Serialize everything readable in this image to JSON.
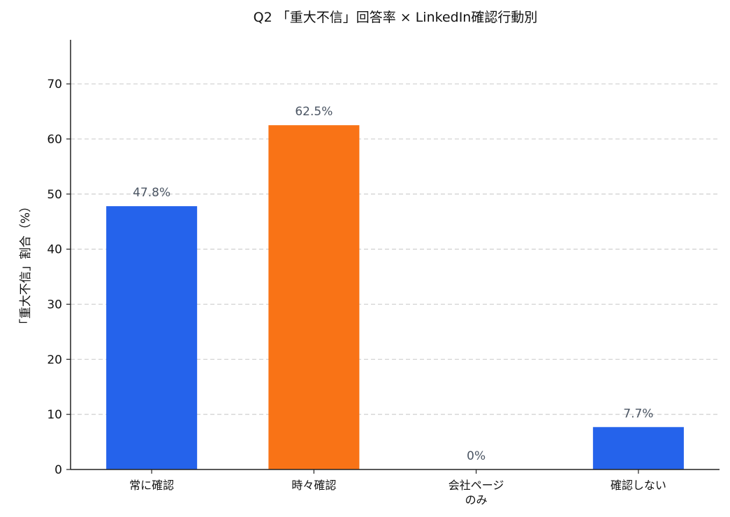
{
  "chart_data": {
    "type": "bar",
    "title": "Q2 「重大不信」回答率 × LinkedIn確認行動別",
    "ylabel": "「重大不信」割合（%）",
    "xlabel": "",
    "ylim": [
      0,
      78
    ],
    "yticks": [
      0,
      10,
      20,
      30,
      40,
      50,
      60,
      70
    ],
    "grid": true,
    "categories": [
      [
        "常に確認"
      ],
      [
        "時々確認"
      ],
      [
        "会社ページ",
        "のみ"
      ],
      [
        "確認しない"
      ]
    ],
    "values": [
      47.8,
      62.5,
      0,
      7.7
    ],
    "data_labels": [
      "47.8%",
      "62.5%",
      "0%",
      "7.7%"
    ],
    "colors": [
      "#2563eb",
      "#f97316",
      "#2563eb",
      "#2563eb"
    ]
  }
}
